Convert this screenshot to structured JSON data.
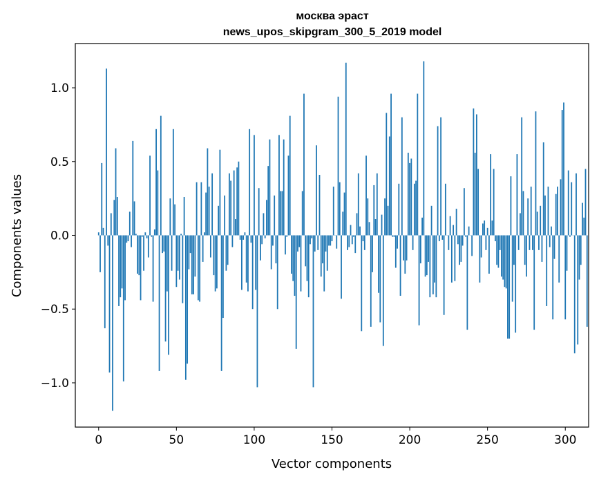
{
  "chart_data": {
    "type": "bar",
    "title": "москва эраст",
    "subtitle": "news_upos_skipgram_300_5_2019 model",
    "xlabel": "Vector components",
    "ylabel": "Components values",
    "xlim": [
      -15,
      315
    ],
    "ylim": [
      -1.3,
      1.3
    ],
    "xticks": [
      0,
      50,
      100,
      150,
      200,
      250,
      300
    ],
    "xtick_labels": [
      "0",
      "50",
      "100",
      "150",
      "200",
      "250",
      "300"
    ],
    "yticks": [
      1.0,
      0.5,
      0.0,
      -0.5,
      -1.0
    ],
    "ytick_labels": [
      "1.0",
      "0.5",
      "0.0",
      "−0.5",
      "−1.0"
    ],
    "bar_color": "#1f77b4",
    "grid": false,
    "values": [
      0.02,
      -0.25,
      0.49,
      0.05,
      -0.63,
      1.13,
      -0.07,
      -0.93,
      0.15,
      -1.19,
      0.24,
      0.59,
      0.26,
      -0.48,
      -0.42,
      -0.36,
      -0.99,
      -0.44,
      -0.05,
      -0.04,
      0.16,
      -0.08,
      0.64,
      0.23,
      0.01,
      -0.26,
      -0.27,
      -0.44,
      -0.01,
      -0.24,
      0.02,
      -0.02,
      -0.15,
      0.54,
      -0.01,
      -0.45,
      0.04,
      0.72,
      0.44,
      -0.92,
      0.81,
      -0.12,
      -0.11,
      -0.72,
      -0.38,
      -0.81,
      0.25,
      -0.24,
      0.72,
      0.21,
      -0.35,
      -0.24,
      -0.3,
      0.01,
      -0.46,
      0.26,
      -0.98,
      -0.87,
      -0.23,
      -0.12,
      -0.4,
      -0.4,
      -0.28,
      0.36,
      -0.44,
      -0.45,
      0.36,
      -0.18,
      0.02,
      0.29,
      0.59,
      0.33,
      -0.15,
      0.42,
      -0.27,
      -0.38,
      -0.36,
      0.2,
      0.58,
      -0.92,
      -0.56,
      0.27,
      -0.24,
      -0.2,
      0.42,
      0.37,
      -0.08,
      0.44,
      0.11,
      0.46,
      0.5,
      -0.03,
      -0.37,
      -0.03,
      0.02,
      -0.32,
      -0.38,
      0.72,
      -0.05,
      -0.5,
      0.68,
      -0.37,
      -1.03,
      0.32,
      -0.17,
      -0.06,
      0.15,
      -0.02,
      0.24,
      0.47,
      0.65,
      -0.23,
      -0.07,
      0.27,
      -0.19,
      -0.5,
      0.68,
      0.3,
      0.3,
      0.65,
      -0.13,
      -0.01,
      0.54,
      0.81,
      -0.26,
      -0.31,
      -0.41,
      -0.77,
      -0.11,
      -0.08,
      -0.38,
      0.3,
      0.96,
      -0.21,
      -0.31,
      -0.42,
      -0.06,
      -0.02,
      -1.03,
      -0.11,
      0.61,
      -0.1,
      0.41,
      -0.28,
      -0.19,
      -0.38,
      -0.11,
      -0.24,
      -0.07,
      -0.07,
      -0.04,
      0.33,
      0.0,
      -0.09,
      0.94,
      0.36,
      -0.43,
      0.16,
      0.29,
      1.17,
      -0.1,
      -0.08,
      0.07,
      -0.06,
      -0.01,
      -0.12,
      0.15,
      0.42,
      0.06,
      -0.65,
      -0.04,
      -0.1,
      0.54,
      0.25,
      0.09,
      -0.62,
      -0.25,
      0.34,
      0.11,
      0.42,
      -0.39,
      -0.59,
      0.14,
      -0.75,
      0.25,
      0.83,
      0.2,
      0.67,
      0.96,
      -0.01,
      -0.01,
      -0.22,
      -0.09,
      0.35,
      -0.41,
      0.8,
      -0.17,
      -0.26,
      -0.17,
      0.56,
      0.49,
      0.52,
      -0.1,
      0.35,
      0.37,
      0.96,
      -0.61,
      -0.19,
      0.12,
      1.18,
      -0.28,
      -0.27,
      -0.18,
      -0.42,
      0.2,
      -0.4,
      -0.32,
      -0.42,
      0.74,
      -0.04,
      0.8,
      -0.03,
      -0.54,
      0.35,
      0.0,
      -0.1,
      0.13,
      -0.32,
      0.07,
      -0.31,
      0.18,
      -0.06,
      -0.2,
      -0.18,
      -0.07,
      0.32,
      -0.01,
      -0.64,
      0.06,
      0.0,
      -0.14,
      0.86,
      0.56,
      0.82,
      0.45,
      -0.32,
      -0.15,
      0.08,
      0.1,
      -0.1,
      0.05,
      -0.26,
      0.55,
      0.1,
      0.45,
      -0.04,
      -0.2,
      -0.22,
      -0.1,
      -0.28,
      -0.3,
      -0.35,
      -0.36,
      -0.7,
      -0.7,
      0.4,
      -0.45,
      -0.2,
      -0.66,
      0.55,
      -0.1,
      0.15,
      0.8,
      0.3,
      -0.2,
      -0.28,
      0.25,
      -0.1,
      0.33,
      -0.1,
      -0.64,
      0.84,
      0.16,
      -0.1,
      0.2,
      -0.18,
      0.63,
      0.27,
      -0.48,
      0.33,
      -0.08,
      0.06,
      -0.57,
      -0.16,
      0.28,
      0.33,
      -0.32,
      0.38,
      0.85,
      0.9,
      -0.57,
      -0.24,
      0.44,
      -0.01,
      0.36,
      0.0,
      -0.8,
      0.42,
      -0.74,
      -0.3,
      -0.2,
      0.22,
      0.12,
      0.45,
      -0.62
    ]
  }
}
